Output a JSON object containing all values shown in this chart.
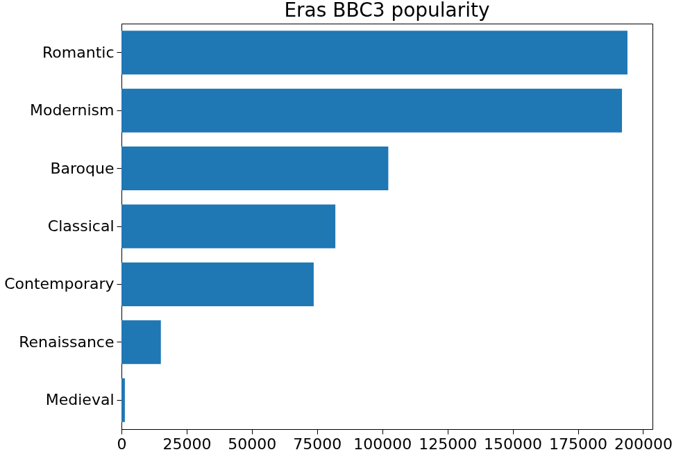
{
  "chart_data": {
    "type": "bar",
    "orientation": "horizontal",
    "title": "Eras BBC3 popularity",
    "categories": [
      "Romantic",
      "Modernism",
      "Baroque",
      "Classical",
      "Contemporary",
      "Renaissance",
      "Medieval"
    ],
    "values": [
      194000,
      191900,
      102300,
      82000,
      73700,
      15100,
      1300
    ],
    "color": "#1f77b4",
    "xlim": [
      0,
      203600
    ],
    "xticks": [
      0,
      25000,
      50000,
      75000,
      100000,
      125000,
      150000,
      175000,
      200000
    ],
    "grid": false
  }
}
